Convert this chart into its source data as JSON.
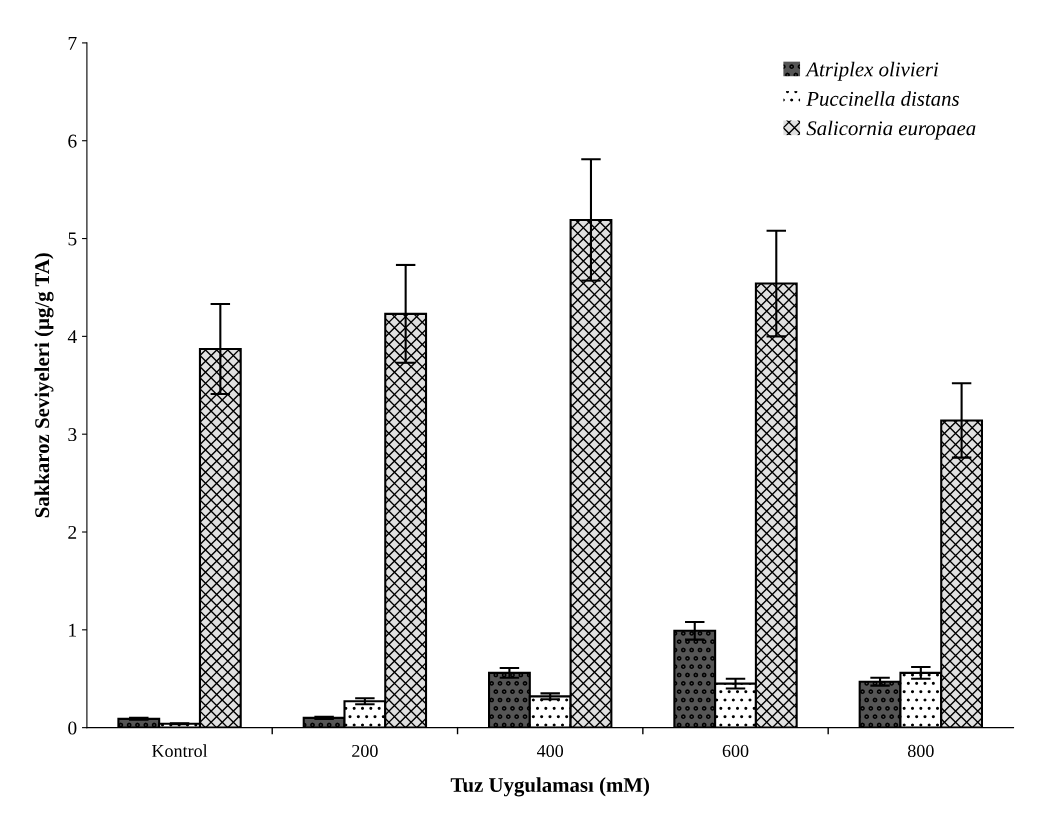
{
  "chart_data": {
    "type": "bar",
    "xlabel": "Tuz Uygulaması (mM)",
    "ylabel": "Sakkaroz Seviyeleri (µg/g TA)",
    "categories": [
      "Kontrol",
      "200",
      "400",
      "600",
      "800"
    ],
    "series": [
      {
        "name": "Atriplex olivieri",
        "color": "#555555",
        "values": [
          0.09,
          0.1,
          0.56,
          0.99,
          0.47
        ],
        "errors": [
          0.01,
          0.01,
          0.05,
          0.09,
          0.04
        ]
      },
      {
        "name": "Puccinella distans",
        "color": "#ffffff",
        "values": [
          0.04,
          0.27,
          0.32,
          0.45,
          0.56
        ],
        "errors": [
          0.005,
          0.03,
          0.03,
          0.05,
          0.06
        ]
      },
      {
        "name": "Salicornia europaea",
        "color": "#e0e0e0",
        "values": [
          3.87,
          4.23,
          5.19,
          4.54,
          3.14
        ],
        "errors": [
          0.46,
          0.5,
          0.62,
          0.54,
          0.38
        ]
      }
    ],
    "ylim": [
      0,
      7
    ],
    "yticks": [
      0,
      1,
      2,
      3,
      4,
      5,
      6,
      7
    ],
    "grid": false,
    "legend": "top right"
  }
}
